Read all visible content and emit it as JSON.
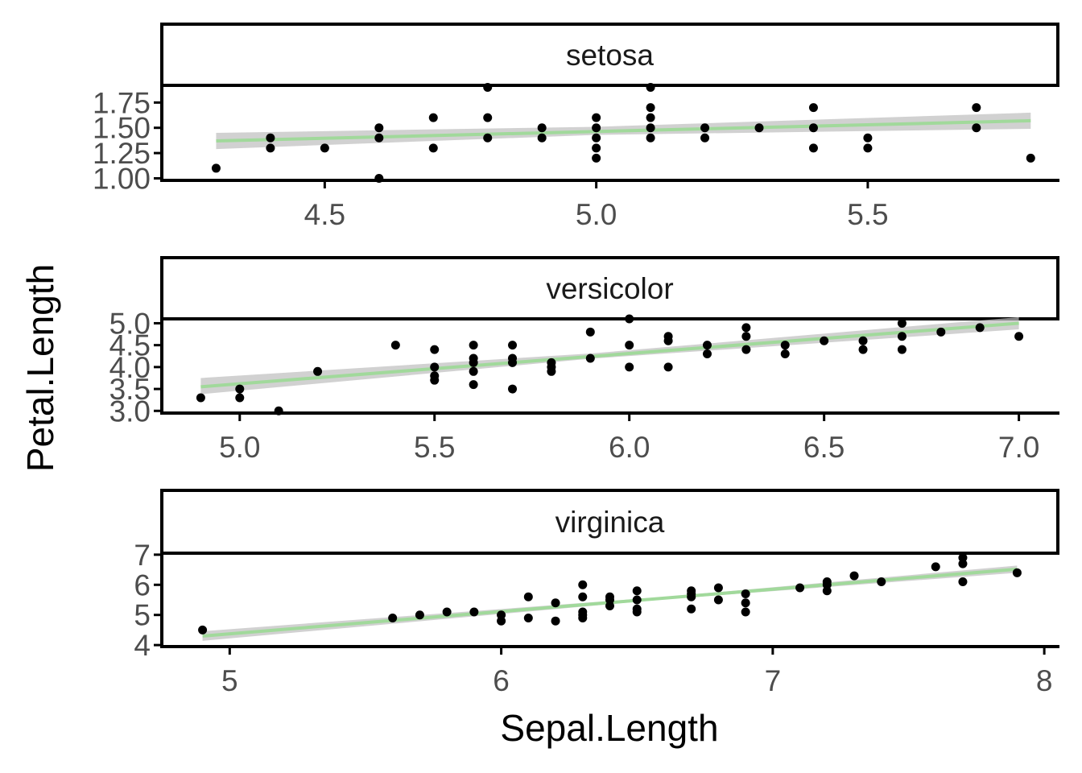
{
  "chart_data": {
    "type": "scatter",
    "xlabel": "Sepal.Length",
    "ylabel": "Petal.Length",
    "colors": {
      "points": "#000000",
      "fit_line": "#a1d99b",
      "confidence_band": "#bdbdbd",
      "axis_text": "#4d4d4d"
    },
    "panels": [
      {
        "strip": "setosa",
        "xlim": [
          4.2,
          5.85
        ],
        "ylim": [
          0.98,
          1.92
        ],
        "xticks": [
          4.5,
          5.0,
          5.5
        ],
        "xtick_labels": [
          "4.5",
          "5.0",
          "5.5"
        ],
        "yticks": [
          1.0,
          1.25,
          1.5,
          1.75
        ],
        "ytick_labels": [
          "1.00",
          "1.25",
          "1.50",
          "1.75"
        ],
        "fit": {
          "x": [
            4.3,
            5.8
          ],
          "y": [
            1.37,
            1.57
          ]
        },
        "band": {
          "x": [
            4.3,
            5.0,
            5.8
          ],
          "upper": [
            1.45,
            1.51,
            1.65
          ],
          "lower": [
            1.29,
            1.43,
            1.49
          ]
        },
        "points": [
          [
            4.3,
            1.1
          ],
          [
            4.4,
            1.4
          ],
          [
            4.4,
            1.3
          ],
          [
            4.5,
            1.3
          ],
          [
            4.6,
            1.0
          ],
          [
            4.6,
            1.4
          ],
          [
            4.6,
            1.5
          ],
          [
            4.7,
            1.3
          ],
          [
            4.7,
            1.6
          ],
          [
            4.8,
            1.4
          ],
          [
            4.8,
            1.6
          ],
          [
            4.8,
            1.9
          ],
          [
            4.9,
            1.4
          ],
          [
            4.9,
            1.5
          ],
          [
            5.0,
            1.2
          ],
          [
            5.0,
            1.3
          ],
          [
            5.0,
            1.4
          ],
          [
            5.0,
            1.5
          ],
          [
            5.0,
            1.6
          ],
          [
            5.1,
            1.4
          ],
          [
            5.1,
            1.5
          ],
          [
            5.1,
            1.6
          ],
          [
            5.1,
            1.7
          ],
          [
            5.1,
            1.9
          ],
          [
            5.2,
            1.4
          ],
          [
            5.2,
            1.5
          ],
          [
            5.3,
            1.5
          ],
          [
            5.4,
            1.3
          ],
          [
            5.4,
            1.5
          ],
          [
            5.4,
            1.7
          ],
          [
            5.5,
            1.3
          ],
          [
            5.5,
            1.4
          ],
          [
            5.7,
            1.5
          ],
          [
            5.7,
            1.7
          ],
          [
            5.8,
            1.2
          ]
        ]
      },
      {
        "strip": "versicolor",
        "xlim": [
          4.8,
          7.1
        ],
        "ylim": [
          2.95,
          5.1
        ],
        "xticks": [
          5.0,
          5.5,
          6.0,
          6.5,
          7.0
        ],
        "xtick_labels": [
          "5.0",
          "5.5",
          "6.0",
          "6.5",
          "7.0"
        ],
        "yticks": [
          3.0,
          3.5,
          4.0,
          4.5,
          5.0
        ],
        "ytick_labels": [
          "3.0",
          "3.5",
          "4.0",
          "4.5",
          "5.0"
        ],
        "fit": {
          "x": [
            4.9,
            7.0
          ],
          "y": [
            3.55,
            5.0
          ]
        },
        "band": {
          "x": [
            4.9,
            5.9,
            7.0
          ],
          "upper": [
            3.75,
            4.31,
            5.14
          ],
          "lower": [
            3.38,
            4.19,
            4.86
          ]
        },
        "points": [
          [
            4.9,
            3.3
          ],
          [
            5.0,
            3.3
          ],
          [
            5.0,
            3.5
          ],
          [
            5.1,
            3.0
          ],
          [
            5.2,
            3.9
          ],
          [
            5.4,
            4.5
          ],
          [
            5.5,
            3.7
          ],
          [
            5.5,
            3.8
          ],
          [
            5.5,
            4.0
          ],
          [
            5.5,
            4.4
          ],
          [
            5.6,
            3.6
          ],
          [
            5.6,
            3.9
          ],
          [
            5.6,
            4.1
          ],
          [
            5.6,
            4.2
          ],
          [
            5.6,
            4.5
          ],
          [
            5.7,
            3.5
          ],
          [
            5.7,
            4.1
          ],
          [
            5.7,
            4.2
          ],
          [
            5.7,
            4.5
          ],
          [
            5.8,
            3.9
          ],
          [
            5.8,
            4.0
          ],
          [
            5.8,
            4.1
          ],
          [
            5.9,
            4.2
          ],
          [
            5.9,
            4.8
          ],
          [
            6.0,
            4.0
          ],
          [
            6.0,
            4.5
          ],
          [
            6.0,
            5.1
          ],
          [
            6.1,
            4.0
          ],
          [
            6.1,
            4.6
          ],
          [
            6.1,
            4.7
          ],
          [
            6.2,
            4.3
          ],
          [
            6.2,
            4.5
          ],
          [
            6.3,
            4.4
          ],
          [
            6.3,
            4.7
          ],
          [
            6.3,
            4.9
          ],
          [
            6.4,
            4.3
          ],
          [
            6.4,
            4.5
          ],
          [
            6.5,
            4.6
          ],
          [
            6.6,
            4.4
          ],
          [
            6.6,
            4.6
          ],
          [
            6.7,
            4.4
          ],
          [
            6.7,
            4.7
          ],
          [
            6.7,
            5.0
          ],
          [
            6.8,
            4.8
          ],
          [
            6.9,
            4.9
          ],
          [
            7.0,
            4.7
          ]
        ]
      },
      {
        "strip": "virginica",
        "xlim": [
          4.75,
          8.05
        ],
        "ylim": [
          3.95,
          7.05
        ],
        "xticks": [
          5,
          6,
          7,
          8
        ],
        "xtick_labels": [
          "5",
          "6",
          "7",
          "8"
        ],
        "yticks": [
          4,
          5,
          6,
          7
        ],
        "ytick_labels": [
          "4",
          "5",
          "6",
          "7"
        ],
        "fit": {
          "x": [
            4.9,
            7.9
          ],
          "y": [
            4.3,
            6.52
          ]
        },
        "band": {
          "x": [
            4.9,
            6.6,
            7.9
          ],
          "upper": [
            4.46,
            5.6,
            6.64
          ],
          "lower": [
            4.14,
            5.52,
            6.4
          ]
        },
        "points": [
          [
            4.9,
            4.5
          ],
          [
            5.6,
            4.9
          ],
          [
            5.7,
            5.0
          ],
          [
            5.8,
            5.1
          ],
          [
            5.9,
            5.1
          ],
          [
            6.0,
            4.8
          ],
          [
            6.0,
            5.0
          ],
          [
            6.1,
            4.9
          ],
          [
            6.1,
            5.6
          ],
          [
            6.2,
            4.8
          ],
          [
            6.2,
            5.4
          ],
          [
            6.3,
            4.9
          ],
          [
            6.3,
            5.0
          ],
          [
            6.3,
            5.1
          ],
          [
            6.3,
            5.6
          ],
          [
            6.3,
            6.0
          ],
          [
            6.4,
            5.3
          ],
          [
            6.4,
            5.5
          ],
          [
            6.4,
            5.6
          ],
          [
            6.5,
            5.1
          ],
          [
            6.5,
            5.2
          ],
          [
            6.5,
            5.5
          ],
          [
            6.5,
            5.8
          ],
          [
            6.7,
            5.2
          ],
          [
            6.7,
            5.6
          ],
          [
            6.7,
            5.7
          ],
          [
            6.7,
            5.8
          ],
          [
            6.8,
            5.5
          ],
          [
            6.8,
            5.9
          ],
          [
            6.9,
            5.1
          ],
          [
            6.9,
            5.4
          ],
          [
            6.9,
            5.7
          ],
          [
            7.1,
            5.9
          ],
          [
            7.2,
            5.8
          ],
          [
            7.2,
            6.0
          ],
          [
            7.2,
            6.1
          ],
          [
            7.3,
            6.3
          ],
          [
            7.4,
            6.1
          ],
          [
            7.6,
            6.6
          ],
          [
            7.7,
            6.1
          ],
          [
            7.7,
            6.7
          ],
          [
            7.7,
            6.9
          ],
          [
            7.9,
            6.4
          ]
        ]
      }
    ]
  }
}
